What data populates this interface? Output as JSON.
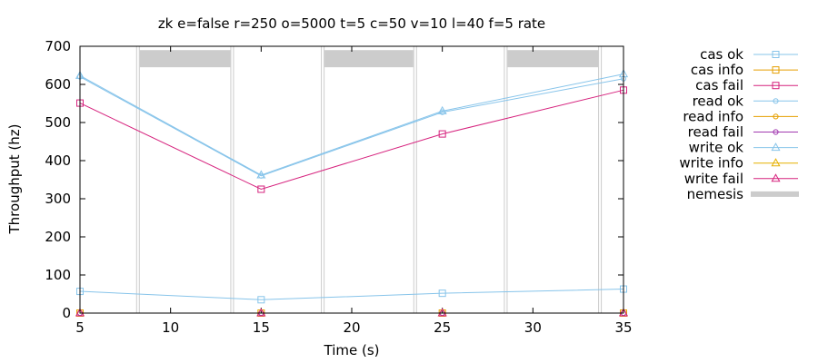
{
  "chart_data": {
    "type": "line",
    "title": "zk e=false r=250 o=5000 t=5 c=50 v=10 l=40 f=5 rate",
    "xlabel": "Time (s)",
    "ylabel": "Throughput (hz)",
    "xlim": [
      5,
      35
    ],
    "ylim": [
      0,
      700
    ],
    "xticks": [
      5,
      10,
      15,
      20,
      25,
      30,
      35
    ],
    "yticks": [
      0,
      100,
      200,
      300,
      400,
      500,
      600,
      700
    ],
    "x": [
      5,
      15,
      25,
      35
    ],
    "legend_position": "right",
    "series": [
      {
        "name": "cas ok",
        "color": "#87c4ea",
        "marker": "square",
        "values": [
          57,
          35,
          52,
          63
        ]
      },
      {
        "name": "cas info",
        "color": "#e69f00",
        "marker": "square",
        "values": [
          0,
          0,
          0,
          0
        ]
      },
      {
        "name": "cas fail",
        "color": "#d6237e",
        "marker": "square",
        "values": [
          551,
          325,
          470,
          585
        ]
      },
      {
        "name": "read ok",
        "color": "#87c4ea",
        "marker": "circle",
        "values": [
          620,
          360,
          527,
          615
        ]
      },
      {
        "name": "read info",
        "color": "#e69f00",
        "marker": "circle",
        "values": [
          0,
          0,
          0,
          0
        ]
      },
      {
        "name": "read fail",
        "color": "#a23ab0",
        "marker": "circle",
        "values": [
          0,
          0,
          0,
          0
        ]
      },
      {
        "name": "write ok",
        "color": "#87c4ea",
        "marker": "triangle",
        "values": [
          623,
          362,
          530,
          627
        ]
      },
      {
        "name": "write info",
        "color": "#e6b000",
        "marker": "triangle",
        "values": [
          0,
          0,
          0,
          0
        ]
      },
      {
        "name": "write fail",
        "color": "#d6237e",
        "marker": "triangle",
        "values": [
          0,
          0,
          0,
          0
        ]
      }
    ],
    "nemesis": {
      "name": "nemesis",
      "color": "#cccccc",
      "intervals": [
        [
          8.2,
          13.4
        ],
        [
          18.4,
          23.5
        ],
        [
          28.5,
          33.7
        ]
      ],
      "band_y": [
        645,
        690
      ]
    }
  }
}
